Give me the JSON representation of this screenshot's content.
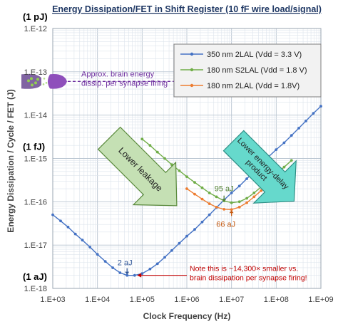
{
  "chart_data": {
    "type": "line",
    "title": "Energy Dissipation/FET in Shift Register (10 fF wire load/signal)",
    "xlabel": "Clock Frequency (Hz)",
    "ylabel": "Energy Dissipation / Cycle / FET (J)",
    "x_scale": "log",
    "y_scale": "log",
    "xlim": [
      1000,
      1000000000
    ],
    "ylim": [
      1e-18,
      1e-12
    ],
    "grid": true,
    "legend_position": "top-right",
    "x_ticks": [
      {
        "value": 1000,
        "label": "1.E+03"
      },
      {
        "value": 10000,
        "label": "1.E+04"
      },
      {
        "value": 100000,
        "label": "1.E+05"
      },
      {
        "value": 1000000,
        "label": "1.E+06"
      },
      {
        "value": 10000000,
        "label": "1.E+07"
      },
      {
        "value": 100000000,
        "label": "1.E+08"
      },
      {
        "value": 1000000000,
        "label": "1.E+09"
      }
    ],
    "y_ticks": [
      {
        "value": 1e-12,
        "label": "1.E-12"
      },
      {
        "value": 1e-13,
        "label": "1.E-13"
      },
      {
        "value": 1e-14,
        "label": "1.E-14"
      },
      {
        "value": 1e-15,
        "label": "1.E-15"
      },
      {
        "value": 1e-16,
        "label": "1.E-16"
      },
      {
        "value": 1e-17,
        "label": "1.E-17"
      },
      {
        "value": 1e-18,
        "label": "1.E-18"
      }
    ],
    "y_unit_labels": [
      {
        "value": 1e-12,
        "label": "(1 pJ)"
      },
      {
        "value": 1e-15,
        "label": "(1 fJ)"
      },
      {
        "value": 1e-18,
        "label": "(1 aJ)"
      }
    ],
    "series": [
      {
        "name": "350 nm 2LAL (Vdd = 3.3 V)",
        "color": "#4472c4",
        "x": [
          1000,
          1500,
          2200,
          3200,
          4600,
          6800,
          10000,
          15000,
          22000,
          32000,
          46000,
          68000,
          100000,
          150000,
          220000,
          320000,
          460000,
          680000,
          1000000,
          1500000,
          2200000,
          3200000,
          4600000,
          6800000,
          10000000,
          15000000,
          22000000,
          32000000,
          46000000,
          68000000,
          100000000,
          150000000,
          220000000,
          320000000,
          460000000,
          680000000,
          1000000000
        ],
        "y": [
          5e-17,
          3.6e-17,
          2.6e-17,
          1.8e-17,
          1.3e-17,
          9e-18,
          6.1e-18,
          4.2e-18,
          3e-18,
          2.3e-18,
          2e-18,
          2e-18,
          2.2e-18,
          2.8e-18,
          3.7e-18,
          5.2e-18,
          7.5e-18,
          1.1e-17,
          1.6e-17,
          2.3e-17,
          3.4e-17,
          5e-17,
          7.3e-17,
          1.1e-16,
          1.6e-16,
          2.3e-16,
          3.4e-16,
          5e-16,
          7.3e-16,
          1.1e-15,
          1.6e-15,
          2.3e-15,
          3.4e-15,
          5e-15,
          7.3e-15,
          1.1e-14,
          1.6e-14
        ]
      },
      {
        "name": "180 nm S2LAL (Vdd = 1.8 V)",
        "color": "#70ad47",
        "x": [
          100000,
          150000,
          220000,
          320000,
          460000,
          680000,
          1000000,
          1500000,
          2200000,
          3200000,
          4600000,
          6800000,
          10000000,
          15000000,
          22000000,
          32000000,
          46000000,
          68000000,
          100000000,
          150000000,
          220000000
        ],
        "y": [
          2.8e-15,
          2e-15,
          1.4e-15,
          1e-15,
          7.2e-16,
          5.2e-16,
          3.8e-16,
          2.8e-16,
          2.1e-16,
          1.6e-16,
          1.3e-16,
          1.05e-16,
          9.5e-17,
          1e-16,
          1.2e-16,
          1.6e-16,
          2.2e-16,
          3.1e-16,
          4.4e-16,
          6.3e-16,
          9e-16
        ]
      },
      {
        "name": "180 nm 2LAL (Vdd = 1.8V)",
        "color": "#ed7d31",
        "x": [
          1000000,
          1500000,
          2200000,
          3200000,
          4600000,
          6800000,
          10000000,
          15000000,
          22000000,
          32000000,
          46000000,
          68000000,
          100000000
        ],
        "y": [
          2e-16,
          1.5e-16,
          1.15e-16,
          9e-17,
          7.5e-17,
          6.7e-17,
          6.6e-17,
          7.5e-17,
          9.5e-17,
          1.3e-16,
          1.8e-16,
          2.6e-16,
          3.8e-16
        ]
      }
    ],
    "annotations": {
      "brain_energy": {
        "text_lines": [
          "Approx. brain energy",
          "dissip. per synapse firing"
        ],
        "value": 6e-14,
        "color": "#7030a0"
      },
      "min_350": {
        "text": "2 aJ",
        "x": 46000,
        "y": 2e-18,
        "color": "#2f5597"
      },
      "min_s2lal": {
        "text": "95 aJ",
        "x": 6800000,
        "y": 9.5e-17,
        "color": "#548235"
      },
      "min_2lal": {
        "text": "66 aJ",
        "x": 10000000,
        "y": 6.6e-17,
        "color": "#c55a11"
      },
      "note": {
        "text_lines": [
          "Note this is ~14,300× smaller vs.",
          "brain dissipation per synapse firing!"
        ],
        "color": "#c00000"
      },
      "lower_leakage": {
        "text": "Lower leakage",
        "color": "#c5e0b4"
      },
      "lower_energy_delay": {
        "text_lines": [
          "Lower energy-delay",
          "product"
        ],
        "color": "#66d9cc"
      }
    }
  }
}
